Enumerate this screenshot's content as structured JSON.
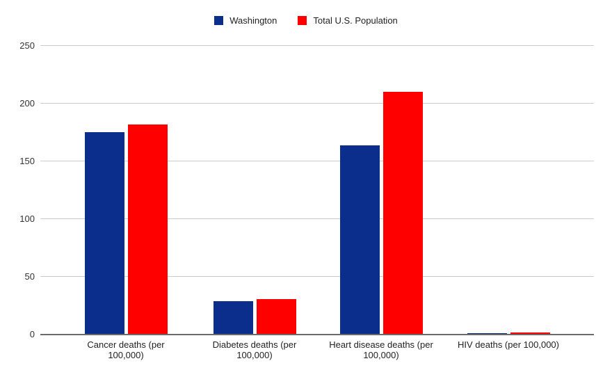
{
  "chart_data": {
    "type": "bar",
    "title": "",
    "xlabel": "",
    "ylabel": "",
    "categories": [
      "Cancer deaths (per 100,000)",
      "Diabetes deaths (per 100,000)",
      "Heart disease deaths (per 100,000)",
      "HIV deaths (per 100,000)"
    ],
    "series": [
      {
        "name": "Washington",
        "color": "#0b2e8c",
        "values": [
          175,
          29,
          164,
          1.3
        ]
      },
      {
        "name": "Total U.S. Population",
        "color": "#ff0000",
        "values": [
          182,
          31,
          210,
          2
        ]
      }
    ],
    "ylim": [
      0,
      250
    ],
    "yticks": [
      "0",
      "50",
      "100",
      "150",
      "200",
      "250"
    ],
    "grid": true,
    "legend_position": "top",
    "colors": {
      "gridline": "#cccccc",
      "axis_line": "#6b6b6b",
      "tick_text": "#333333",
      "label_text": "#222222",
      "background": "#ffffff"
    }
  }
}
